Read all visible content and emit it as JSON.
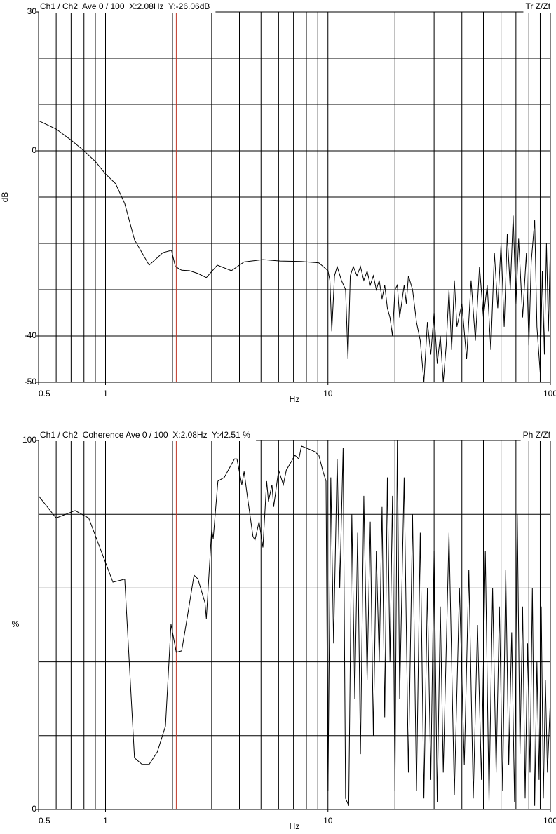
{
  "chart_data": [
    {
      "type": "line",
      "title": "Ch1 / Ch2  Ave 0 / 100  X:2.08Hz  Y:-26.06dB",
      "corner_label": "Tr Z/Zf",
      "ylabel": "dB",
      "xlabel": "Hz",
      "log_x": true,
      "xlim": [
        0.5,
        100
      ],
      "ylim": [
        -50,
        30
      ],
      "xticks": [
        0.5,
        1,
        10,
        100
      ],
      "xgrid": [
        0.6,
        0.7,
        0.8,
        0.9,
        1,
        2,
        3,
        4,
        5,
        6,
        7,
        8,
        9,
        10,
        20,
        30,
        40,
        50,
        60,
        70,
        80,
        90,
        100
      ],
      "yticks": [
        -50,
        -40,
        0,
        30
      ],
      "ygrid": [
        -40,
        -30,
        -20,
        -10,
        0,
        10,
        20
      ],
      "cursor_x": 2.08,
      "cursor_color": "#c0392b",
      "color": "#000000",
      "x": [
        0.5,
        0.6,
        0.7,
        0.8,
        0.9,
        1,
        1.11,
        1.22,
        1.35,
        1.57,
        1.81,
        1.98,
        2.06,
        2.2,
        2.38,
        2.6,
        2.84,
        3.18,
        3.68,
        4.2,
        5.1,
        6.1,
        7.6,
        9.1,
        10,
        10.2,
        10.4,
        10.7,
        11,
        11.5,
        12,
        12.3,
        12.6,
        13,
        13.5,
        14,
        14.5,
        15,
        15.5,
        16,
        16.5,
        17,
        17.5,
        18,
        18.5,
        19,
        19.5,
        20,
        20.5,
        21,
        22,
        22.5,
        23,
        24,
        25,
        26,
        27,
        28,
        29,
        30,
        31,
        32,
        33,
        34,
        35,
        36,
        37,
        38,
        40,
        42,
        44,
        46,
        48,
        50,
        52,
        54,
        56,
        58,
        60,
        62,
        64,
        66,
        68,
        70,
        72,
        75,
        78,
        80,
        82,
        85,
        87,
        90,
        92,
        94,
        96,
        98,
        100
      ],
      "values": [
        6.5,
        4.7,
        2.3,
        0,
        -2.3,
        -5,
        -7.1,
        -11.4,
        -19.2,
        -24.7,
        -22,
        -21.5,
        -25,
        -25.8,
        -25.9,
        -26.5,
        -27.4,
        -24.7,
        -25.9,
        -24,
        -23.5,
        -23.8,
        -23.9,
        -24.2,
        -25.9,
        -28,
        -39,
        -27,
        -25,
        -28,
        -30,
        -45,
        -27,
        -25,
        -27,
        -25,
        -28,
        -26,
        -29,
        -27,
        -30,
        -28,
        -32,
        -29,
        -34,
        -36,
        -40,
        -30,
        -29,
        -36,
        -29,
        -33,
        -27,
        -30,
        -37,
        -41,
        -50,
        -37,
        -44,
        -35,
        -46,
        -40,
        -50,
        -42,
        -30,
        -43,
        -28,
        -38,
        -33,
        -45,
        -28,
        -41,
        -25,
        -36,
        -29,
        -43,
        -22,
        -34,
        -20,
        -38,
        -18,
        -30,
        -14,
        -33,
        -19,
        -36,
        -22,
        -42,
        -24,
        -15,
        -38,
        -48,
        -26,
        -44,
        -20,
        -39,
        -20
      ]
    },
    {
      "type": "line",
      "title": "Ch1 / Ch2  Coherence Ave 0 / 100  X:2.08Hz  Y:42.51 %",
      "corner_label": "Ph Z/Zf",
      "ylabel": "%",
      "xlabel": "Hz",
      "log_x": true,
      "xlim": [
        0.5,
        100
      ],
      "ylim": [
        0,
        100
      ],
      "xticks": [
        0.5,
        1,
        10,
        100
      ],
      "xgrid": [
        0.6,
        0.7,
        0.8,
        0.9,
        1,
        2,
        3,
        4,
        5,
        6,
        7,
        8,
        9,
        10,
        20,
        30,
        40,
        50,
        60,
        70,
        80,
        90,
        100
      ],
      "yticks": [
        0,
        100
      ],
      "ygrid": [
        20,
        40,
        60,
        80
      ],
      "cursor_x": 2.08,
      "cursor_color": "#c0392b",
      "color": "#000000",
      "x": [
        0.5,
        0.6,
        0.73,
        0.84,
        1.08,
        1.22,
        1.35,
        1.46,
        1.57,
        1.71,
        1.86,
        1.97,
        2.08,
        2.2,
        2.33,
        2.5,
        2.6,
        2.8,
        2.84,
        3.0,
        3.05,
        3.2,
        3.42,
        3.8,
        3.9,
        4.1,
        4.2,
        4.3,
        4.6,
        4.7,
        4.9,
        5.1,
        5.3,
        5.4,
        5.6,
        5.7,
        6.0,
        6.3,
        6.5,
        6.8,
        7.1,
        7.4,
        7.6,
        8.2,
        8.7,
        9.1,
        9.5,
        9.8,
        10,
        10.3,
        10.6,
        11,
        11.3,
        11.7,
        12,
        12.4,
        12.8,
        13.2,
        13.6,
        14,
        14.5,
        15,
        15.5,
        16,
        16.5,
        17,
        17.5,
        18,
        18.5,
        19,
        19.5,
        20,
        20.5,
        21,
        22,
        23,
        24,
        25,
        26,
        27,
        28,
        29,
        30,
        31,
        32,
        33,
        35,
        37,
        39,
        41,
        43,
        45,
        47,
        49,
        51,
        53,
        55,
        57,
        59,
        61,
        63,
        65,
        67,
        69,
        71,
        73,
        75,
        77,
        79,
        81,
        83,
        85,
        87,
        89,
        91,
        93,
        95,
        97,
        100
      ],
      "values": [
        85,
        79,
        81,
        79,
        61.6,
        62.4,
        14,
        12.2,
        12.2,
        15.6,
        22.6,
        50.2,
        42.6,
        43,
        52,
        63.5,
        62.5,
        56,
        51.7,
        75.9,
        73.4,
        89,
        90,
        95,
        95,
        88,
        91.6,
        86.7,
        74,
        73,
        78,
        71,
        89,
        83.5,
        88,
        82,
        92,
        88,
        92,
        94,
        96,
        95,
        98.5,
        97.7,
        97,
        96,
        91.6,
        89,
        5,
        90,
        45,
        95,
        60,
        98,
        3,
        1,
        80,
        30,
        75,
        15,
        85,
        35,
        78,
        20,
        70,
        40,
        82,
        25,
        90,
        40,
        85,
        5,
        100,
        30,
        90,
        10,
        80,
        5,
        75,
        3,
        60,
        8,
        70,
        2,
        55,
        10,
        75,
        4,
        60,
        12,
        65,
        3,
        50,
        8,
        70,
        2,
        60,
        10,
        55,
        5,
        65,
        12,
        48,
        2,
        80,
        15,
        55,
        3,
        45,
        10,
        60,
        1,
        40,
        8,
        55,
        3,
        35,
        10,
        30
      ]
    }
  ]
}
